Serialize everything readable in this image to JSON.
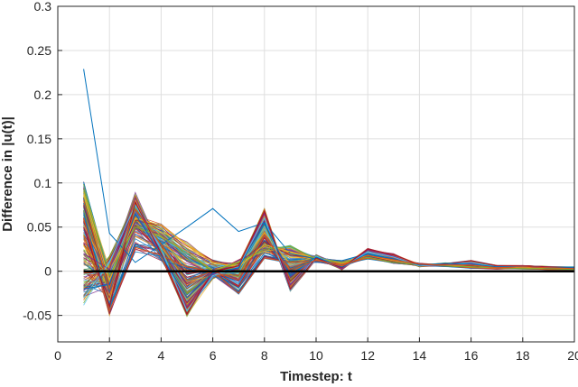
{
  "chart_data": {
    "type": "line",
    "title": "",
    "xlabel": "Timestep: t",
    "ylabel": "Difference in |u(t)|",
    "xlim": [
      0,
      20
    ],
    "ylim": [
      -0.08,
      0.3
    ],
    "xticks": [
      0,
      2,
      4,
      6,
      8,
      10,
      12,
      14,
      16,
      18,
      20
    ],
    "yticks": [
      -0.05,
      0,
      0.05,
      0.1,
      0.15,
      0.2,
      0.25,
      0.3
    ],
    "xtick_labels": [
      "0",
      "2",
      "4",
      "6",
      "8",
      "10",
      "12",
      "14",
      "16",
      "18",
      "20"
    ],
    "ytick_labels": [
      "-0.05",
      "0",
      "0.05",
      "0.1",
      "0.15",
      "0.2",
      "0.25",
      "0.3"
    ],
    "grid": true,
    "legend": "none",
    "x": [
      1,
      2,
      3,
      4,
      5,
      6,
      7,
      8,
      9,
      10,
      11,
      12,
      13,
      14,
      15,
      16,
      17,
      18,
      19,
      20
    ],
    "series_count_approx": 200,
    "colors": [
      "#0072bd",
      "#d95319",
      "#edb120",
      "#7e2f8e",
      "#77ac30",
      "#4dbeee",
      "#a2142f"
    ],
    "series": [
      {
        "color": "#0072bd",
        "values": [
          0.229,
          0.043,
          0.01,
          0.03,
          0.05,
          0.071,
          0.045,
          0.055,
          0.02,
          0.014,
          0.012,
          0.02,
          0.012,
          0.008,
          0.006,
          0.005,
          0.004,
          0.003,
          0.003,
          0.002
        ]
      },
      {
        "color": "#d95319",
        "values": [
          0.06,
          -0.045,
          0.027,
          0.018,
          0.005,
          0.0,
          -0.025,
          0.015,
          0.01,
          0.012,
          0.008,
          0.015,
          0.01,
          0.007,
          0.006,
          0.004,
          0.003,
          0.003,
          0.002,
          0.002
        ]
      },
      {
        "color": "#edb120",
        "values": [
          0.09,
          -0.01,
          0.06,
          0.052,
          0.03,
          0.01,
          0.005,
          0.03,
          0.022,
          0.015,
          0.01,
          0.018,
          0.012,
          0.008,
          0.007,
          0.005,
          0.004,
          0.004,
          0.003,
          0.003
        ]
      },
      {
        "color": "#77ac30",
        "values": [
          0.093,
          -0.005,
          0.05,
          0.04,
          0.02,
          0.0,
          0.01,
          0.025,
          0.028,
          0.014,
          0.01,
          0.016,
          0.01,
          0.007,
          0.006,
          0.005,
          0.004,
          0.003,
          0.003,
          0.002
        ]
      },
      {
        "color": "#7e2f8e",
        "values": [
          0.02,
          0.002,
          0.083,
          0.02,
          -0.04,
          -0.003,
          0.003,
          0.065,
          -0.015,
          0.016,
          0.003,
          0.024,
          0.017,
          0.006,
          0.007,
          0.009,
          0.004,
          0.005,
          0.004,
          0.004
        ]
      },
      {
        "color": "#4dbeee",
        "values": [
          -0.03,
          0.01,
          0.075,
          0.025,
          -0.045,
          -0.005,
          0.005,
          0.06,
          -0.02,
          0.017,
          0.004,
          0.022,
          0.016,
          0.006,
          0.008,
          0.01,
          0.005,
          0.006,
          0.005,
          0.005
        ]
      },
      {
        "color": "#a2142f",
        "values": [
          0.05,
          -0.04,
          0.078,
          0.02,
          -0.048,
          0.0,
          0.006,
          0.068,
          -0.02,
          0.015,
          0.004,
          0.025,
          0.019,
          0.007,
          0.008,
          0.012,
          0.006,
          0.006,
          0.005,
          0.004
        ]
      },
      {
        "color": "#0072bd",
        "values": [
          -0.02,
          -0.015,
          0.065,
          0.018,
          -0.03,
          -0.002,
          0.004,
          0.055,
          -0.005,
          0.016,
          0.005,
          0.02,
          0.014,
          0.007,
          0.009,
          0.008,
          0.005,
          0.005,
          0.004,
          0.004
        ]
      },
      {
        "color": "#d95319",
        "values": [
          0.08,
          -0.02,
          0.07,
          0.03,
          -0.01,
          0.0,
          -0.01,
          0.04,
          0.0,
          0.013,
          0.006,
          0.018,
          0.013,
          0.008,
          0.007,
          0.007,
          0.004,
          0.005,
          0.004,
          0.003
        ]
      },
      {
        "color": "#000000",
        "values": [
          0,
          0,
          0,
          0,
          0,
          0,
          0,
          0,
          0,
          0,
          0,
          0,
          0,
          0,
          0,
          0,
          0,
          0,
          0,
          0
        ]
      }
    ]
  }
}
